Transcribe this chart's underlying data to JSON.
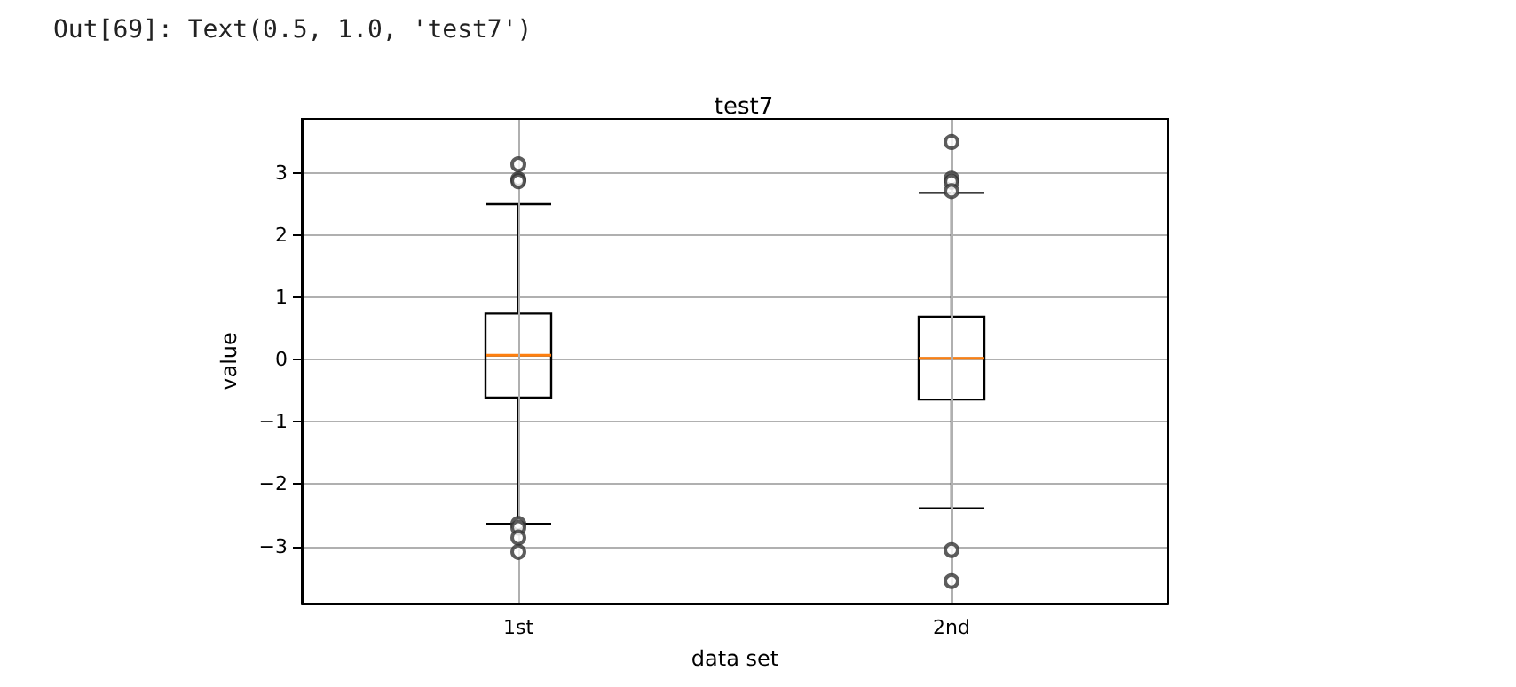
{
  "chart_data": {
    "type": "box",
    "title": "test7",
    "xlabel": "data set",
    "ylabel": "value",
    "annotations": [
      "Out[69]: Text(0.5, 1.0, 'test7')"
    ],
    "categories": [
      "1st",
      "2nd"
    ],
    "boxes": [
      {
        "low": -2.64,
        "q1": -0.61,
        "median": 0.07,
        "q3": 0.74,
        "high": 2.5,
        "outliers": [
          3.14,
          2.9,
          2.87,
          -2.64,
          -2.7,
          -2.86,
          -3.09
        ]
      },
      {
        "low": -2.39,
        "q1": -0.64,
        "median": 0.02,
        "q3": 0.69,
        "high": 2.68,
        "outliers": [
          3.5,
          2.91,
          2.86,
          2.71,
          -3.06,
          -3.56
        ]
      }
    ],
    "ylim": [
      -3.92,
      3.87
    ],
    "yticks": [
      -3,
      -2,
      -1,
      0,
      1,
      2,
      3
    ],
    "grid": true
  }
}
